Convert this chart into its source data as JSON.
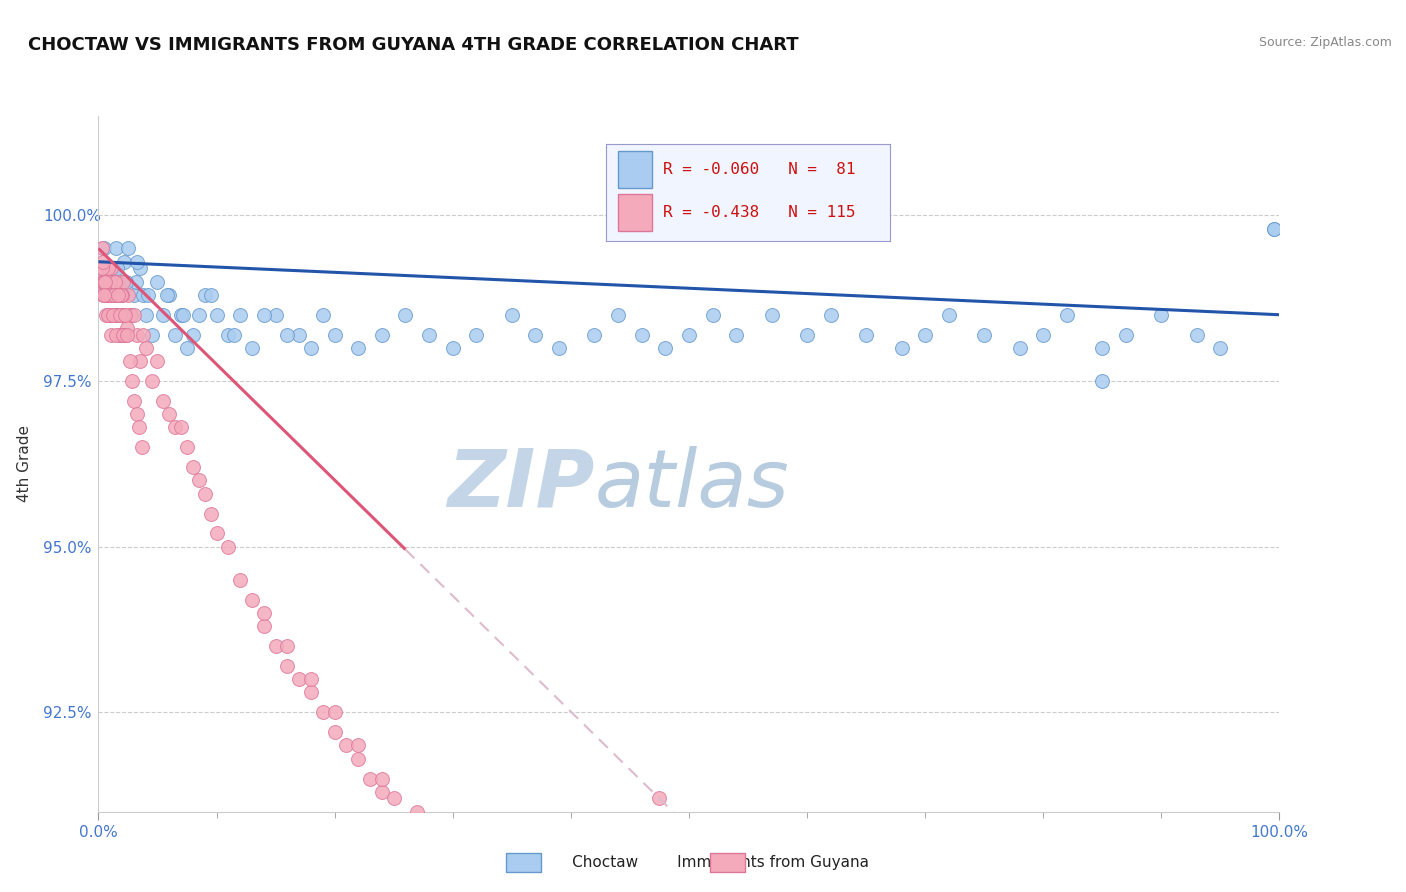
{
  "title": "CHOCTAW VS IMMIGRANTS FROM GUYANA 4TH GRADE CORRELATION CHART",
  "source": "Source: ZipAtlas.com",
  "xlabel": "",
  "ylabel": "4th Grade",
  "xlim": [
    0.0,
    100.0
  ],
  "ylim": [
    91.0,
    101.5
  ],
  "yticks": [
    92.5,
    95.0,
    97.5,
    100.0
  ],
  "ytick_labels": [
    "92.5%",
    "95.0%",
    "97.5%",
    "100.0%"
  ],
  "xticks": [
    0.0,
    100.0
  ],
  "xtick_labels": [
    "0.0%",
    "100.0%"
  ],
  "choctaw_color": "#aaccf0",
  "guyana_color": "#f4aabb",
  "choctaw_edge": "#6699cc",
  "guyana_edge": "#dd7799",
  "choctaw_line_color": "#2255aa",
  "guyana_line_color": "#dd5577",
  "R_choctaw": -0.06,
  "N_choctaw": 81,
  "R_guyana": -0.438,
  "N_guyana": 115,
  "watermark_zip": "ZIP",
  "watermark_atlas": "atlas",
  "watermark_color_zip": "#c8d8ee",
  "watermark_color_atlas": "#b8c8e0",
  "background_color": "#ffffff",
  "grid_color": "#cccccc",
  "choctaw_x": [
    0.3,
    0.5,
    0.8,
    1.0,
    1.2,
    1.5,
    1.8,
    2.0,
    2.2,
    2.5,
    2.8,
    3.0,
    3.2,
    3.5,
    3.8,
    4.0,
    4.5,
    5.0,
    5.5,
    6.0,
    6.5,
    7.0,
    7.5,
    8.0,
    9.0,
    10.0,
    11.0,
    12.0,
    13.0,
    15.0,
    17.0,
    18.0,
    19.0,
    20.0,
    22.0,
    24.0,
    26.0,
    28.0,
    30.0,
    32.0,
    35.0,
    37.0,
    39.0,
    42.0,
    44.0,
    46.0,
    48.0,
    50.0,
    52.0,
    54.0,
    57.0,
    60.0,
    62.0,
    65.0,
    68.0,
    70.0,
    72.0,
    75.0,
    78.0,
    80.0,
    82.0,
    85.0,
    87.0,
    90.0,
    93.0,
    95.0,
    99.5,
    85.0,
    1.3,
    1.6,
    2.3,
    3.3,
    4.2,
    5.8,
    7.2,
    8.5,
    9.5,
    11.5,
    14.0,
    16.0,
    99.5
  ],
  "choctaw_y": [
    99.2,
    99.5,
    99.0,
    98.5,
    99.2,
    99.5,
    98.8,
    99.0,
    99.3,
    99.5,
    98.5,
    98.8,
    99.0,
    99.2,
    98.8,
    98.5,
    98.2,
    99.0,
    98.5,
    98.8,
    98.2,
    98.5,
    98.0,
    98.2,
    98.8,
    98.5,
    98.2,
    98.5,
    98.0,
    98.5,
    98.2,
    98.0,
    98.5,
    98.2,
    98.0,
    98.2,
    98.5,
    98.2,
    98.0,
    98.2,
    98.5,
    98.2,
    98.0,
    98.2,
    98.5,
    98.2,
    98.0,
    98.2,
    98.5,
    98.2,
    98.5,
    98.2,
    98.5,
    98.2,
    98.0,
    98.2,
    98.5,
    98.2,
    98.0,
    98.2,
    98.5,
    98.0,
    98.2,
    98.5,
    98.2,
    98.0,
    99.8,
    97.5,
    99.0,
    99.2,
    99.0,
    99.3,
    98.8,
    98.8,
    98.5,
    98.5,
    98.8,
    98.2,
    98.5,
    98.2,
    99.8
  ],
  "guyana_x": [
    0.2,
    0.3,
    0.4,
    0.5,
    0.6,
    0.7,
    0.8,
    0.9,
    1.0,
    1.1,
    1.2,
    1.3,
    1.4,
    1.5,
    1.6,
    1.7,
    1.8,
    1.9,
    2.0,
    2.1,
    2.2,
    2.3,
    2.5,
    2.7,
    3.0,
    3.3,
    3.5,
    3.8,
    4.0,
    4.5,
    5.0,
    5.5,
    6.0,
    6.5,
    7.0,
    7.5,
    8.0,
    8.5,
    9.0,
    9.5,
    10.0,
    11.0,
    12.0,
    13.0,
    14.0,
    15.0,
    16.0,
    17.0,
    18.0,
    19.0,
    20.0,
    21.0,
    22.0,
    23.0,
    24.0,
    25.0,
    0.4,
    0.6,
    0.8,
    1.0,
    1.2,
    1.4,
    1.6,
    1.8,
    2.0,
    2.2,
    2.4,
    0.3,
    0.5,
    0.7,
    0.9,
    1.1,
    1.3,
    1.5,
    1.7,
    1.9,
    2.1,
    0.35,
    0.55,
    0.75,
    0.95,
    1.15,
    1.35,
    1.55,
    1.75,
    1.95,
    2.15,
    0.45,
    0.65,
    0.85,
    1.05,
    1.25,
    1.45,
    1.65,
    1.85,
    2.05,
    2.25,
    2.45,
    2.65,
    2.85,
    3.05,
    3.25,
    3.45,
    3.65,
    14.0,
    16.0,
    18.0,
    20.0,
    22.0,
    24.0,
    27.0,
    47.5
  ],
  "guyana_y": [
    99.0,
    99.5,
    98.8,
    99.2,
    99.0,
    98.8,
    99.0,
    98.5,
    99.0,
    99.2,
    98.8,
    98.5,
    99.0,
    98.5,
    99.0,
    98.8,
    98.5,
    98.2,
    98.8,
    99.0,
    98.5,
    98.2,
    98.8,
    98.5,
    98.5,
    98.2,
    97.8,
    98.2,
    98.0,
    97.5,
    97.8,
    97.2,
    97.0,
    96.8,
    96.8,
    96.5,
    96.2,
    96.0,
    95.8,
    95.5,
    95.2,
    95.0,
    94.5,
    94.2,
    93.8,
    93.5,
    93.2,
    93.0,
    92.8,
    92.5,
    92.2,
    92.0,
    91.8,
    91.5,
    91.3,
    91.2,
    99.0,
    98.8,
    99.2,
    99.0,
    98.8,
    99.0,
    98.8,
    98.5,
    98.8,
    98.5,
    98.3,
    99.2,
    99.0,
    98.8,
    98.8,
    98.5,
    98.8,
    98.5,
    98.5,
    98.2,
    98.5,
    99.3,
    99.0,
    98.8,
    98.8,
    98.5,
    98.8,
    98.5,
    98.2,
    98.8,
    98.2,
    98.8,
    98.5,
    98.5,
    98.2,
    98.5,
    98.2,
    98.8,
    98.5,
    98.2,
    98.5,
    98.2,
    97.8,
    97.5,
    97.2,
    97.0,
    96.8,
    96.5,
    94.0,
    93.5,
    93.0,
    92.5,
    92.0,
    91.5,
    91.0,
    91.2
  ]
}
